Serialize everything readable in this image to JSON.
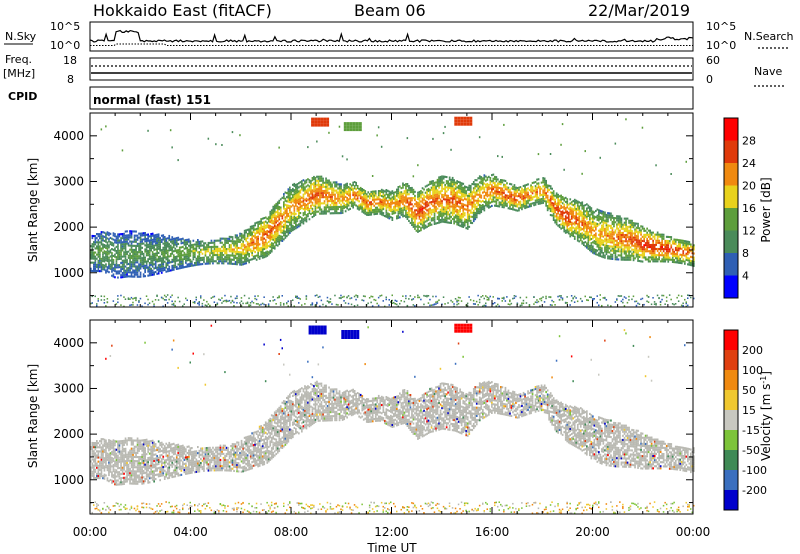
{
  "header": {
    "station": "Hokkaido East (fitACF)",
    "beam": "Beam 06",
    "date": "22/Mar/2019"
  },
  "top_panels": {
    "nsky_label": "N.Sky",
    "nsky_ticks": [
      "10^5",
      "10^0"
    ],
    "nsearch_label": "N.Search",
    "freq_label_line1": "Freq.",
    "freq_label_line2": "[MHz]",
    "freq_ticks": [
      "18",
      "8"
    ],
    "nave_ticks": [
      "60",
      "0"
    ],
    "nave_label": "Nave",
    "cpid_label": "CPID",
    "cpid_value": "normal (fast) 151"
  },
  "chart_data": [
    {
      "type": "heatmap",
      "name": "power",
      "ylabel": "Slant Range [km]",
      "yticks": [
        1000,
        2000,
        3000,
        4000
      ],
      "ylim": [
        250,
        4500
      ],
      "xlim": [
        0,
        24
      ],
      "colorbar_label": "Power [dB]",
      "colorbar_ticks": [
        "4",
        "8",
        "12",
        "16",
        "20",
        "24",
        "28"
      ],
      "colorbar_colors": [
        "#0000ff",
        "#2f5fb4",
        "#4a8b5a",
        "#5e9e3c",
        "#e8d21c",
        "#f08a10",
        "#e03a0a",
        "#ff0000"
      ],
      "bands": [
        {
          "t": [
            0.0,
            0.5,
            1.0,
            1.5,
            2.0,
            3.0,
            4.0,
            5.0,
            6.0,
            6.5,
            7.0,
            7.5,
            8.0,
            8.5,
            9.0,
            9.5,
            10.0,
            10.5,
            11.0,
            11.5,
            12.0,
            12.5,
            13.0,
            13.5,
            14.0,
            14.5,
            15.0,
            15.5,
            16.0,
            16.5,
            17.0,
            17.5,
            18.0,
            18.5,
            19.0,
            19.5,
            20.0,
            20.5,
            21.0,
            21.5,
            22.0,
            22.5,
            23.0,
            23.5,
            24.0
          ],
          "range_km": [
            1400,
            1450,
            1350,
            1400,
            1380,
            1400,
            1420,
            1450,
            1500,
            1650,
            1800,
            2100,
            2400,
            2550,
            2700,
            2650,
            2600,
            2700,
            2500,
            2550,
            2450,
            2600,
            2300,
            2500,
            2600,
            2550,
            2400,
            2700,
            2800,
            2700,
            2600,
            2700,
            2800,
            2400,
            2200,
            2100,
            1900,
            1800,
            1750,
            1700,
            1600,
            1550,
            1500,
            1450,
            1400
          ],
          "power_db": [
            12,
            14,
            12,
            12,
            12,
            13,
            16,
            18,
            20,
            24,
            26,
            24,
            22,
            24,
            26,
            24,
            22,
            24,
            26,
            24,
            22,
            24,
            28,
            26,
            24,
            26,
            24,
            22,
            24,
            26,
            26,
            24,
            22,
            26,
            28,
            24,
            22,
            22,
            24,
            26,
            28,
            28,
            28,
            26,
            24
          ]
        }
      ]
    },
    {
      "type": "heatmap",
      "name": "velocity",
      "ylabel": "Slant Range [km]",
      "yticks": [
        1000,
        2000,
        3000,
        4000
      ],
      "ylim": [
        250,
        4500
      ],
      "xlim": [
        0,
        24
      ],
      "xlabel": "Time UT",
      "xticks": [
        "00:00",
        "04:00",
        "08:00",
        "12:00",
        "16:00",
        "20:00",
        "00:00"
      ],
      "colorbar_label": "Velocity [m s",
      "colorbar_unit_sup": "-1",
      "colorbar_label_close": "]",
      "colorbar_ticks": [
        "200",
        "100",
        "50",
        "15",
        "-15",
        "-50",
        "-100",
        "-200"
      ],
      "colorbar_colors": [
        "#0000cc",
        "#3a6fbf",
        "#3f8a56",
        "#7dc43a",
        "#c8c8c0",
        "#f0c830",
        "#f08a10",
        "#e04010",
        "#ff0000"
      ],
      "ground_scatter_color": "#b9b9b2"
    }
  ]
}
